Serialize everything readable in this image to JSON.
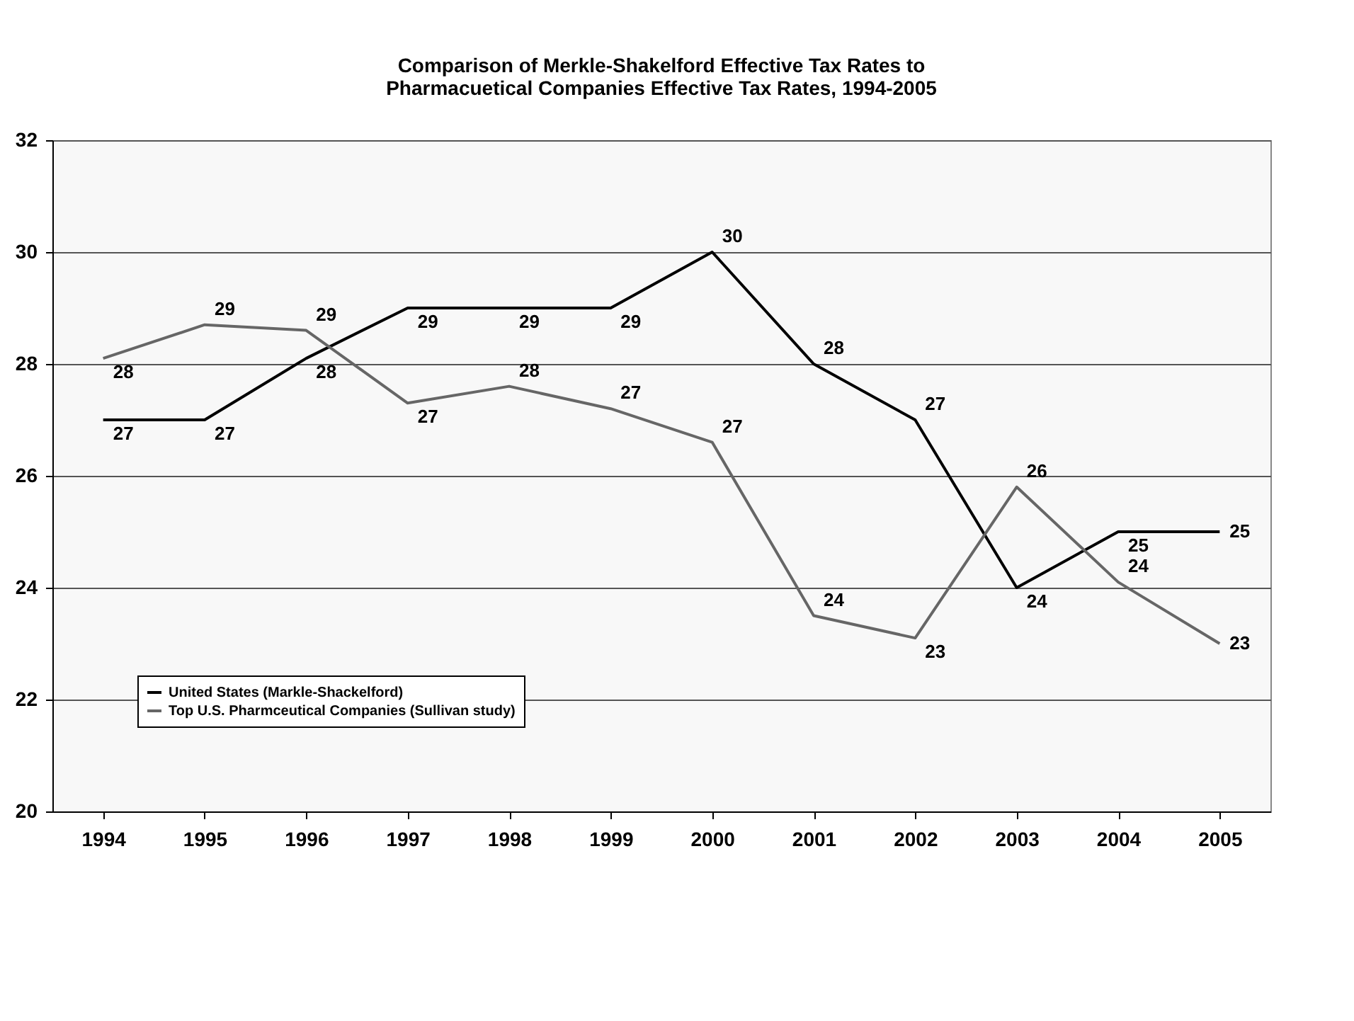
{
  "chart_data": {
    "type": "line",
    "title": "Comparison of Merkle-Shakelford Effective Tax Rates to Pharmacuetical Companies Effective Tax Rates, 1994-2005",
    "categories": [
      "1994",
      "1995",
      "1996",
      "1997",
      "1998",
      "1999",
      "2000",
      "2001",
      "2002",
      "2003",
      "2004",
      "2005"
    ],
    "series": [
      {
        "name": "United States (Markle-Shackelford)",
        "color": "#000000",
        "values": [
          27,
          27,
          28.1,
          29,
          29,
          29,
          30,
          28,
          27,
          24,
          25,
          25
        ],
        "value_labels": [
          "27",
          "27",
          "28",
          "29",
          "29",
          "29",
          "30",
          "28",
          "27",
          "24",
          "25",
          "25"
        ]
      },
      {
        "name": "Top U.S. Pharmceutical Companies (Sullivan study)",
        "color": "#666666",
        "values": [
          28.1,
          28.7,
          28.6,
          27.3,
          27.6,
          27.2,
          26.6,
          23.5,
          23.1,
          25.8,
          24.1,
          23.0
        ],
        "value_labels": [
          "28",
          "29",
          "29",
          "27",
          "28",
          "27",
          "27",
          "24",
          "23",
          "26",
          "24",
          "23"
        ]
      }
    ],
    "ylim": [
      20,
      32
    ],
    "yticks": [
      20,
      22,
      24,
      26,
      28,
      30,
      32
    ],
    "grid": "y",
    "legend": "bottom left",
    "marker": "none",
    "line_style": "solid"
  }
}
